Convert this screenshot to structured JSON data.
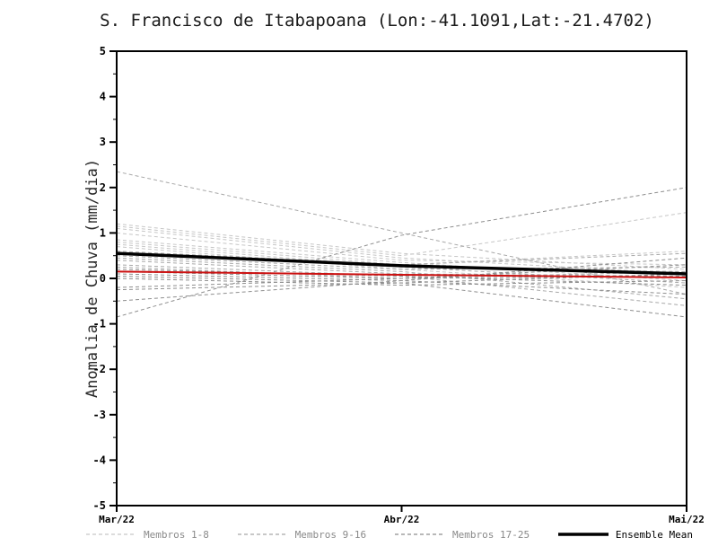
{
  "title": "S. Francisco de Itabapoana (Lon:-41.1091,Lat:-21.4702)",
  "chart_data": {
    "type": "line",
    "x": [
      "Mar/22",
      "Abr/22",
      "Mai/22"
    ],
    "xlabel": "",
    "ylabel": "Anomalia de Chuva (mm/dia)",
    "ylim": [
      -5,
      5
    ],
    "yticks": [
      5,
      4,
      3,
      2,
      1,
      0,
      -1,
      -2,
      -3,
      -4,
      -5
    ],
    "grid": false,
    "legend_position": "bottom",
    "groups": [
      {
        "name": "Membros 1-8",
        "color": "#c6c6c6",
        "style": "dashed",
        "width": 1
      },
      {
        "name": "Membros 9-16",
        "color": "#a8a8a8",
        "style": "dashed",
        "width": 1
      },
      {
        "name": "Membros 17-25",
        "color": "#8e8e8e",
        "style": "dashed",
        "width": 1
      },
      {
        "name": "Ensemble Mean",
        "color": "#000000",
        "style": "solid",
        "width": 3.5
      }
    ],
    "members": [
      {
        "group": 0,
        "values": [
          1.2,
          0.55,
          0.2
        ]
      },
      {
        "group": 0,
        "values": [
          1.15,
          0.5,
          1.45
        ]
      },
      {
        "group": 0,
        "values": [
          1.1,
          0.45,
          0.1
        ]
      },
      {
        "group": 0,
        "values": [
          1.0,
          0.4,
          0.3
        ]
      },
      {
        "group": 0,
        "values": [
          0.85,
          0.35,
          -0.05
        ]
      },
      {
        "group": 0,
        "values": [
          0.8,
          0.3,
          0.6
        ]
      },
      {
        "group": 0,
        "values": [
          0.75,
          0.25,
          0.15
        ]
      },
      {
        "group": 0,
        "values": [
          0.7,
          0.2,
          -0.2
        ]
      },
      {
        "group": 1,
        "values": [
          2.35,
          1.0,
          -0.35
        ]
      },
      {
        "group": 1,
        "values": [
          0.6,
          0.3,
          0.55
        ]
      },
      {
        "group": 1,
        "values": [
          0.55,
          0.25,
          -0.1
        ]
      },
      {
        "group": 1,
        "values": [
          0.5,
          0.2,
          0.25
        ]
      },
      {
        "group": 1,
        "values": [
          0.45,
          0.15,
          -0.45
        ]
      },
      {
        "group": 1,
        "values": [
          0.4,
          0.1,
          0.05
        ]
      },
      {
        "group": 1,
        "values": [
          0.3,
          0.05,
          -0.6
        ]
      },
      {
        "group": 1,
        "values": [
          0.25,
          0.0,
          0.15
        ]
      },
      {
        "group": 2,
        "values": [
          -0.85,
          0.95,
          2.0
        ]
      },
      {
        "group": 2,
        "values": [
          -0.5,
          -0.05,
          0.45
        ]
      },
      {
        "group": 2,
        "values": [
          -0.25,
          -0.1,
          -0.85
        ]
      },
      {
        "group": 2,
        "values": [
          -0.2,
          0.0,
          0.3
        ]
      },
      {
        "group": 2,
        "values": [
          0.2,
          0.05,
          -0.15
        ]
      },
      {
        "group": 2,
        "values": [
          0.15,
          0.0,
          0.05
        ]
      },
      {
        "group": 2,
        "values": [
          0.1,
          -0.05,
          -0.35
        ]
      },
      {
        "group": 2,
        "values": [
          0.05,
          -0.1,
          0.1
        ]
      },
      {
        "group": 2,
        "values": [
          0.0,
          -0.15,
          -0.05
        ]
      }
    ],
    "ensemble_mean": {
      "name": "Ensemble Mean",
      "color": "#000000",
      "values": [
        0.55,
        0.28,
        0.1
      ]
    },
    "red_line": {
      "name": "red-highlight-line",
      "color": "#cc1111",
      "values": [
        0.15,
        0.08,
        0.02
      ]
    }
  }
}
